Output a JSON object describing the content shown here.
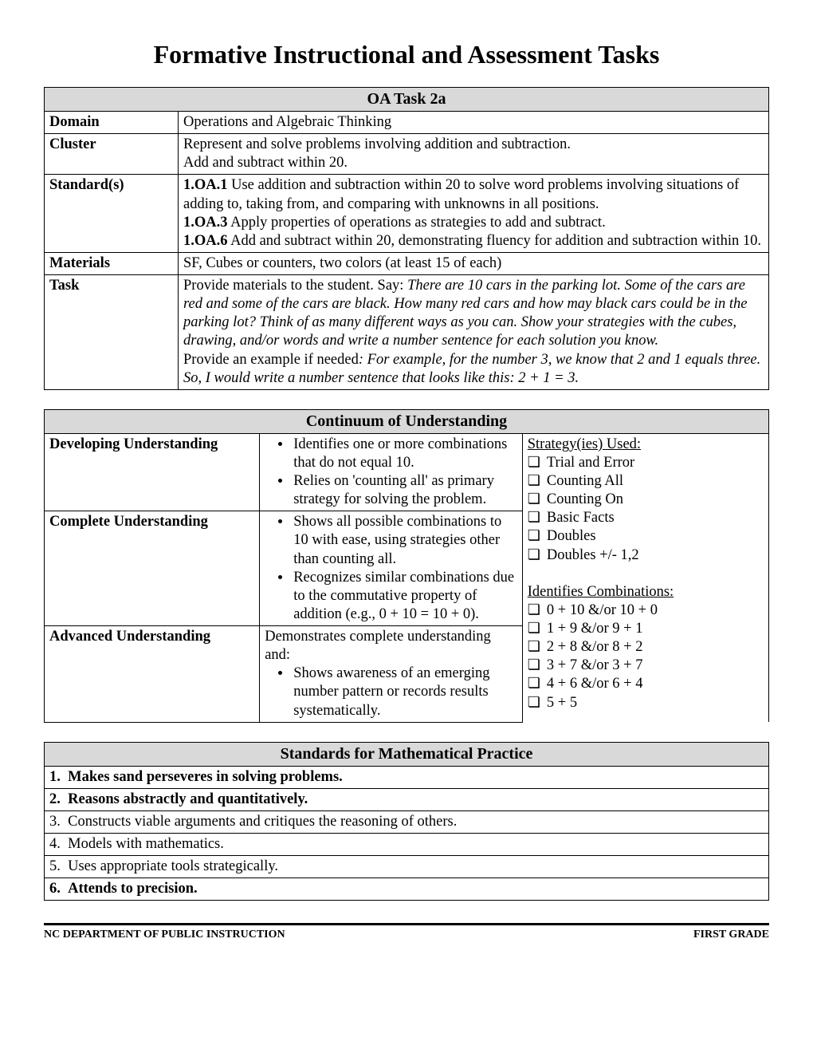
{
  "page": {
    "title": "Formative Instructional and Assessment Tasks"
  },
  "task_table": {
    "header": "OA Task 2a",
    "rows": {
      "domain": {
        "label": "Domain",
        "value": "Operations and Algebraic Thinking"
      },
      "cluster": {
        "label": "Cluster",
        "line1": "Represent and solve problems involving addition and subtraction.",
        "line2": "Add and subtract within 20."
      },
      "standards": {
        "label": "Standard(s)",
        "items": [
          {
            "code": "1.OA.1",
            "text": " Use addition and subtraction within 20 to solve word problems involving situations of adding to, taking from, and comparing with unknowns in all positions."
          },
          {
            "code": "1.OA.3",
            "text": " Apply properties of operations as strategies to add and subtract."
          },
          {
            "code": "1.OA.6",
            "text": " Add and subtract within 20, demonstrating fluency for addition and subtraction within 10."
          }
        ]
      },
      "materials": {
        "label": "Materials",
        "value": "SF, Cubes or counters, two colors (at least 15 of each)"
      },
      "task": {
        "label": "Task",
        "intro": "Provide materials to the student. Say: ",
        "prompt_italic": "There are 10 cars in the parking lot.  Some of the cars are red and some of the cars are black. How many red cars and how may black cars could be in the parking lot?  Think of as many different ways as you can. Show your strategies with the cubes, drawing, and/or words and write a number sentence for each solution you know.",
        "example_lead": "Provide an example if needed",
        "example_italic": ": For example, for the number 3, we know that 2 and 1 equals three.  So, I would write a number sentence that looks like this:  2 + 1 = 3."
      }
    }
  },
  "continuum": {
    "header": "Continuum of Understanding",
    "levels": {
      "developing": {
        "label": "Developing Understanding",
        "bullets": [
          "Identifies one or more combinations that do not equal 10.",
          "Relies on 'counting all' as primary strategy for solving the problem."
        ]
      },
      "complete": {
        "label": "Complete Understanding",
        "bullets": [
          "Shows all possible combinations to 10 with ease, using strategies other than counting all.",
          "Recognizes similar combinations due to the commutative property of addition (e.g., 0 + 10 = 10 + 0)."
        ]
      },
      "advanced": {
        "label": "Advanced Understanding",
        "lead": "Demonstrates complete understanding and:",
        "bullets": [
          "Shows awareness of an emerging number pattern or records results systematically."
        ]
      }
    },
    "strategies": {
      "title": "Strategy(ies) Used:",
      "items": [
        "Trial and Error",
        "Counting All",
        "Counting On",
        "Basic Facts",
        "Doubles",
        "Doubles +/- 1,2"
      ]
    },
    "combinations": {
      "title": "Identifies Combinations:",
      "items": [
        "0 + 10  &/or  10 + 0",
        "1 + 9  &/or  9 + 1",
        "2 + 8  &/or  8 + 2",
        "3 + 7  &/or  3 + 7",
        "4 + 6  &/or  6 + 4",
        "5 + 5"
      ]
    }
  },
  "practices": {
    "header": "Standards for Mathematical Practice",
    "items": [
      {
        "text": "Makes sand perseveres in solving problems.",
        "bold": true
      },
      {
        "text": "Reasons abstractly and quantitatively.",
        "bold": true
      },
      {
        "text": "Constructs viable arguments and critiques the reasoning of others.",
        "bold": false
      },
      {
        "text": "Models with mathematics.",
        "bold": false
      },
      {
        "text": "Uses appropriate tools strategically.",
        "bold": false
      },
      {
        "text": "Attends to precision.",
        "bold": true
      }
    ]
  },
  "footer": {
    "left": "NC DEPARTMENT OF PUBLIC INSTRUCTION",
    "right": "FIRST GRADE"
  }
}
